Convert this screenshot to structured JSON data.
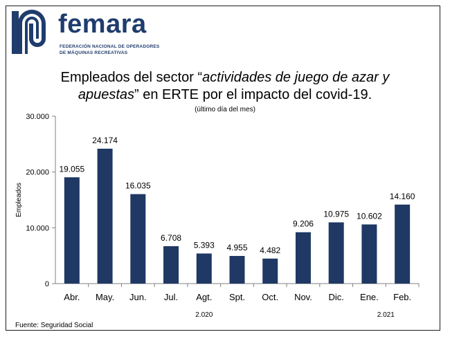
{
  "logo": {
    "name": "femara",
    "line1": "FEDERACIÓN NACIONAL DE OPERADORES",
    "line2": "DE MÁQUINAS RECREATIVAS"
  },
  "title": {
    "part1": "Empleados del sector “",
    "italic1": "actividades de juego de azar y",
    "italic2": "apuestas",
    "part2": "” en ERTE por el impacto del covid-19."
  },
  "subtitle": "(último día del mes)",
  "source": "Fuente: Seguridad Social",
  "chart_data": {
    "type": "bar",
    "categories": [
      "Abr.",
      "May.",
      "Jun.",
      "Jul.",
      "Agt.",
      "Spt.",
      "Oct.",
      "Nov.",
      "Dic.",
      "Ene.",
      "Feb."
    ],
    "values": [
      19055,
      24174,
      16035,
      6708,
      5393,
      4955,
      4482,
      9206,
      10975,
      10602,
      14160
    ],
    "value_labels": [
      "19.055",
      "24.174",
      "16.035",
      "6.708",
      "5.393",
      "4.955",
      "4.482",
      "9.206",
      "10.975",
      "10.602",
      "14.160"
    ],
    "ylabel": "Empleados",
    "ylim": [
      0,
      30000
    ],
    "yticks": [
      0,
      10000,
      20000,
      30000
    ],
    "ytick_labels": [
      "0",
      "10.000",
      "20.000",
      "30.000"
    ],
    "year_labels": [
      {
        "label": "2.020",
        "category_span": [
          0,
          8
        ]
      },
      {
        "label": "2.021",
        "category_span": [
          9,
          10
        ]
      }
    ],
    "bar_color": "#1f3864",
    "grid": false
  }
}
